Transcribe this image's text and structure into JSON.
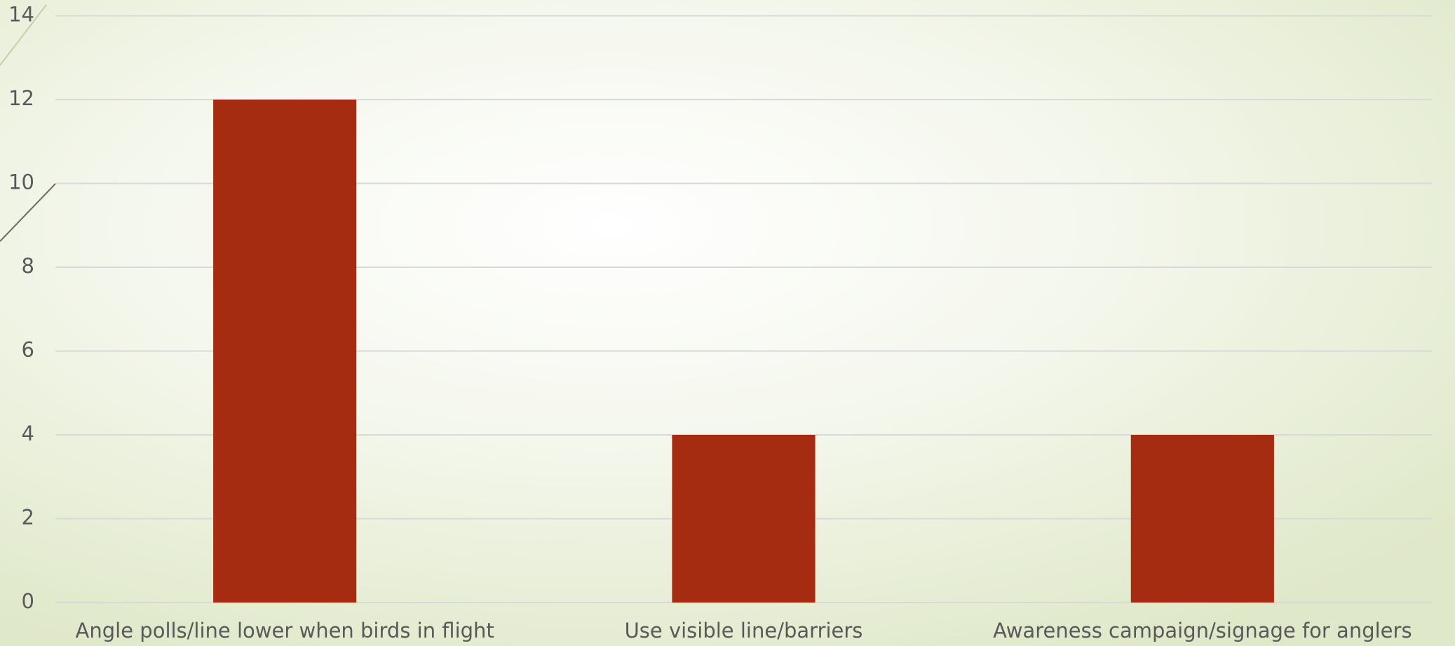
{
  "chart_data": {
    "type": "bar",
    "categories": [
      "Angle polls/line lower when birds in flight",
      "Use visible line/barriers",
      "Awareness campaign/signage for anglers"
    ],
    "values": [
      12,
      4,
      4
    ],
    "color": "#a52c10",
    "ylim": [
      0,
      14
    ],
    "yticks": [
      0,
      2,
      4,
      6,
      8,
      10,
      12,
      14
    ],
    "grid": true
  }
}
